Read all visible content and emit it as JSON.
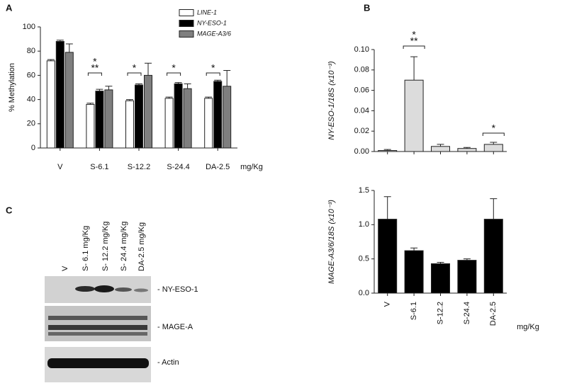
{
  "chart_data": [
    {
      "type": "bar",
      "panel": "A",
      "ylabel": "% Methylation",
      "x_unit": "mg/Kg",
      "categories": [
        "V",
        "S-6.1",
        "S-12.2",
        "S-24.4",
        "DA-2.5"
      ],
      "series": [
        {
          "name": "LINE-1",
          "color": "#ffffff",
          "values": [
            72,
            36,
            39,
            41,
            41
          ],
          "errors": [
            1,
            1,
            1,
            1,
            1
          ]
        },
        {
          "name": "NY-ESO-1",
          "color": "#000000",
          "values": [
            88,
            47,
            52,
            53,
            55
          ],
          "errors": [
            1,
            1.5,
            1,
            1,
            1
          ]
        },
        {
          "name": "MAGE-A3/6",
          "color": "#7f7f7f",
          "values": [
            79,
            48,
            60,
            49,
            51
          ],
          "errors": [
            7,
            3,
            10,
            4,
            13
          ]
        }
      ],
      "ylim": [
        0,
        100
      ],
      "yticks": [
        0,
        20,
        40,
        60,
        80,
        100
      ],
      "legend": "top-right",
      "annotations": [
        {
          "text": "*"
        },
        {
          "text": "**"
        },
        {
          "text": "*"
        },
        {
          "text": "*"
        },
        {
          "text": "*"
        }
      ]
    },
    {
      "type": "bar",
      "panel": "B",
      "ylabel": "NY-ESO-1/18S (x10⁻³)",
      "categories": [
        null,
        null,
        null,
        null,
        null
      ],
      "values": [
        0.001,
        0.07,
        0.005,
        0.003,
        0.007
      ],
      "errors": [
        0.001,
        0.023,
        0.002,
        0.001,
        0.002
      ],
      "color": "#dcdcdc",
      "ylim": [
        0,
        0.1
      ],
      "yticks": [
        {
          "value": 0,
          "label": "0.00"
        },
        {
          "value": 0.02,
          "label": "0.02"
        },
        {
          "value": 0.04,
          "label": "0.04"
        },
        {
          "value": 0.06,
          "label": "0.06"
        },
        {
          "value": 0.08,
          "label": "0.08"
        },
        {
          "value": 0.1,
          "label": "0.10"
        }
      ],
      "annotations": [
        {
          "text": "*"
        },
        {
          "text": "**"
        },
        {
          "text": "*"
        }
      ]
    },
    {
      "type": "bar",
      "ylabel": "MAGE-A3/6/18S (x10⁻³)",
      "x_unit": "mg/Kg",
      "categories": [
        "V",
        "S-6.1",
        "S-12.2",
        "S-24.4",
        "DA-2.5"
      ],
      "values": [
        1.08,
        0.62,
        0.43,
        0.48,
        1.08
      ],
      "errors": [
        0.33,
        0.04,
        0.02,
        0.02,
        0.3
      ],
      "color": "#000000",
      "ylim": [
        0,
        1.5
      ],
      "yticks": [
        {
          "value": 0,
          "label": "0.0"
        },
        {
          "value": 0.5,
          "label": "0.5"
        },
        {
          "value": 1,
          "label": "1.0"
        },
        {
          "value": 1.5,
          "label": "1.5"
        }
      ]
    }
  ],
  "blot": {
    "panel": "C",
    "lanes": [
      "V",
      "S- 6.1 mg/Kg",
      "S- 12.2 mg/Kg",
      "S- 24.4 mg/Kg",
      "DA-2.5 mg/Kg"
    ],
    "bands": [
      "- NY-ESO-1",
      "- MAGE-A",
      "- Actin"
    ]
  }
}
